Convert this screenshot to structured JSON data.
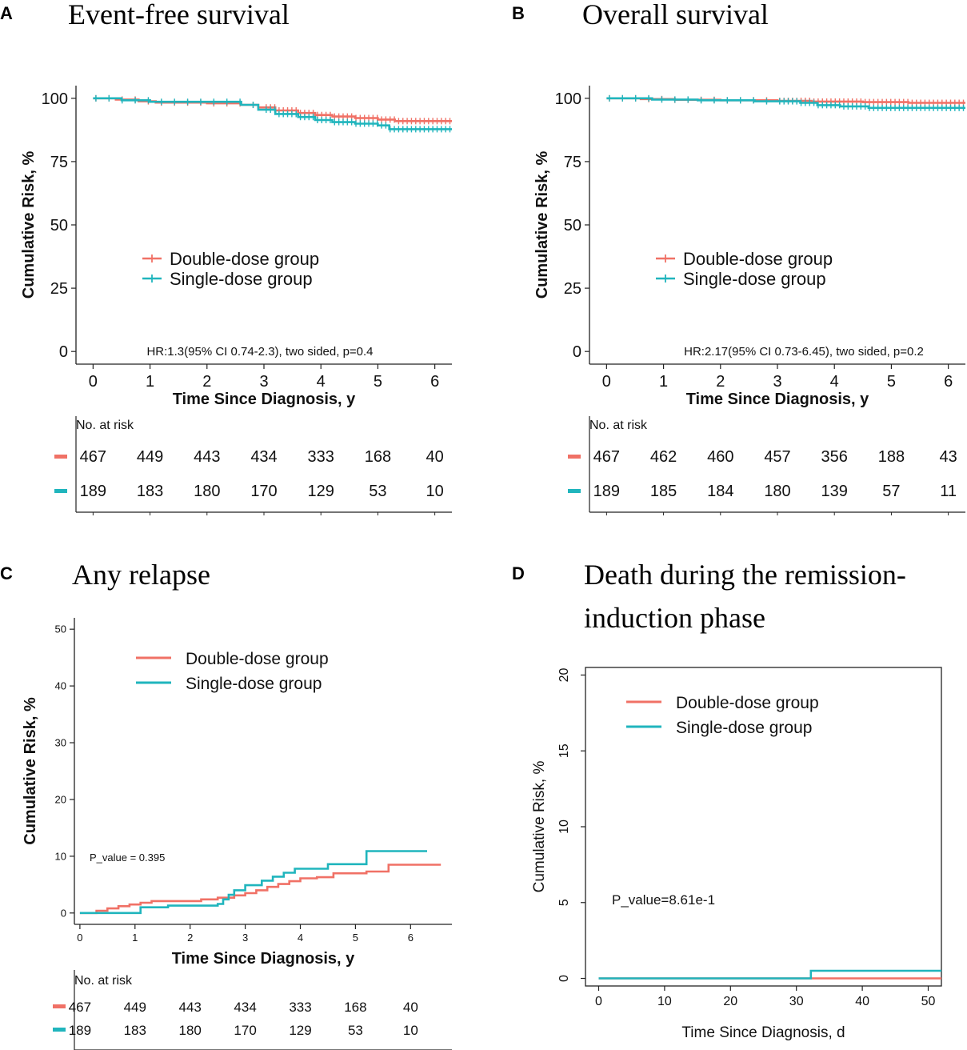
{
  "colors": {
    "double": "#f07166",
    "single": "#20b5bd",
    "axis": "#222222",
    "text": "#111111"
  },
  "chart_data": [
    {
      "panel": "A",
      "type": "line",
      "title": "Event-free survival",
      "xlabel": "Time Since Diagnosis, y",
      "ylabel": "Cumulative Risk, %",
      "xlim": [
        -0.3,
        6.3
      ],
      "ylim": [
        -5,
        105
      ],
      "xticks": [
        "0",
        "1",
        "2",
        "3",
        "4",
        "5",
        "6"
      ],
      "yticks": [
        "0",
        "25",
        "50",
        "75",
        "100"
      ],
      "legend": [
        "Double-dose group",
        "Single-dose group"
      ],
      "annotation": "HR:1.3(95% CI 0.74-2.3), two sided, p=0.4",
      "series": [
        {
          "name": "Double-dose group",
          "x": [
            0,
            0.4,
            0.8,
            1.1,
            2.0,
            2.6,
            2.9,
            3.2,
            3.6,
            3.9,
            4.2,
            4.6,
            5.0,
            5.3,
            6.3
          ],
          "y": [
            100,
            99.5,
            98.8,
            98.3,
            98.0,
            97.4,
            96.4,
            95.2,
            94.2,
            93.4,
            92.8,
            92.2,
            91.6,
            91.0,
            91.0
          ]
        },
        {
          "name": "Single-dose group",
          "x": [
            0,
            0.5,
            1.0,
            2.3,
            2.6,
            2.9,
            3.2,
            3.6,
            3.9,
            4.2,
            4.6,
            5.0,
            5.2,
            6.3
          ],
          "y": [
            100,
            99.2,
            98.6,
            98.6,
            97.4,
            95.5,
            93.8,
            92.6,
            91.4,
            90.6,
            90.0,
            89.3,
            87.8,
            87.8
          ]
        }
      ],
      "risk_table": {
        "title": "No. at risk",
        "double": [
          "467",
          "449",
          "443",
          "434",
          "333",
          "168",
          "40"
        ],
        "single": [
          "189",
          "183",
          "180",
          "170",
          "129",
          "53",
          "10"
        ]
      }
    },
    {
      "panel": "B",
      "type": "line",
      "title": "Overall survival",
      "xlabel": "Time Since Diagnosis, y",
      "ylabel": "Cumulative Risk, %",
      "xlim": [
        -0.3,
        6.3
      ],
      "ylim": [
        -5,
        105
      ],
      "xticks": [
        "0",
        "1",
        "2",
        "3",
        "4",
        "5",
        "6"
      ],
      "yticks": [
        "0",
        "25",
        "50",
        "75",
        "100"
      ],
      "legend": [
        "Double-dose group",
        "Single-dose group"
      ],
      "annotation": "HR:2.17(95% CI 0.73-6.45), two sided, p=0.2",
      "series": [
        {
          "name": "Double-dose group",
          "x": [
            0,
            0.6,
            1.2,
            2.0,
            3.0,
            3.6,
            4.5,
            5.3,
            6.3
          ],
          "y": [
            100,
            99.7,
            99.4,
            99.2,
            99.0,
            98.7,
            98.5,
            98.2,
            98.2
          ]
        },
        {
          "name": "Single-dose group",
          "x": [
            0,
            0.8,
            1.6,
            2.6,
            3.4,
            3.7,
            4.1,
            4.6,
            6.3
          ],
          "y": [
            100,
            99.5,
            99.2,
            98.8,
            98.2,
            97.3,
            96.8,
            96.2,
            96.2
          ]
        }
      ],
      "risk_table": {
        "title": "No. at risk",
        "double": [
          "467",
          "462",
          "460",
          "457",
          "356",
          "188",
          "43"
        ],
        "single": [
          "189",
          "185",
          "184",
          "180",
          "139",
          "57",
          "11"
        ]
      }
    },
    {
      "panel": "C",
      "type": "line",
      "title": "Any relapse",
      "xlabel": "Time Since Diagnosis, y",
      "ylabel": "Cumulative Risk, %",
      "xlim": [
        -0.1,
        6.75
      ],
      "ylim": [
        -2,
        52
      ],
      "xticks": [
        "0",
        "1",
        "2",
        "3",
        "4",
        "5",
        "6"
      ],
      "yticks": [
        "0",
        "10",
        "20",
        "30",
        "40",
        "50"
      ],
      "legend": [
        "Double-dose group",
        "Single-dose group"
      ],
      "annotation": "P_value = 0.395",
      "series": [
        {
          "name": "Double-dose group",
          "x": [
            0,
            0.3,
            0.5,
            0.7,
            0.9,
            1.1,
            1.3,
            2.2,
            2.5,
            2.8,
            3.0,
            3.2,
            3.4,
            3.6,
            3.8,
            4.0,
            4.3,
            4.6,
            5.2,
            5.6,
            6.55
          ],
          "y": [
            0,
            0.4,
            0.8,
            1.2,
            1.5,
            1.8,
            2.1,
            2.4,
            2.7,
            3.1,
            3.5,
            4.0,
            4.6,
            5.1,
            5.6,
            6.1,
            6.3,
            7.0,
            7.3,
            8.5,
            8.5
          ]
        },
        {
          "name": "Single-dose group",
          "x": [
            0,
            1.1,
            1.6,
            2.5,
            2.6,
            2.7,
            2.8,
            3.0,
            3.3,
            3.5,
            3.7,
            3.9,
            4.5,
            5.2,
            6.3
          ],
          "y": [
            0,
            1.0,
            1.3,
            1.6,
            2.4,
            3.2,
            4.0,
            4.9,
            5.7,
            6.4,
            7.1,
            7.8,
            8.6,
            10.9,
            10.9
          ]
        }
      ],
      "risk_table": {
        "title": "No. at risk",
        "double": [
          "467",
          "449",
          "443",
          "434",
          "333",
          "168",
          "40"
        ],
        "single": [
          "189",
          "183",
          "180",
          "170",
          "129",
          "53",
          "10"
        ]
      }
    },
    {
      "panel": "D",
      "type": "line",
      "title_lines": [
        "Death during the remission-",
        "induction phase"
      ],
      "xlabel": "Time Since Diagnosis, d",
      "ylabel": "Cumulative Risk, %",
      "xlim": [
        -2,
        52
      ],
      "ylim": [
        -0.5,
        20.5
      ],
      "xticks": [
        "0",
        "10",
        "20",
        "30",
        "40",
        "50"
      ],
      "yticks": [
        "0",
        "5",
        "10",
        "15",
        "20"
      ],
      "legend": [
        "Double-dose group",
        "Single-dose group"
      ],
      "annotation": "P_value=8.61e-1",
      "series": [
        {
          "name": "Double-dose group",
          "x": [
            0,
            52
          ],
          "y": [
            0,
            0
          ]
        },
        {
          "name": "Single-dose group",
          "x": [
            0,
            32.2,
            32.2,
            52
          ],
          "y": [
            0,
            0,
            0.5,
            0.5
          ]
        }
      ]
    }
  ],
  "panel_letters": [
    "A",
    "B",
    "C",
    "D"
  ]
}
